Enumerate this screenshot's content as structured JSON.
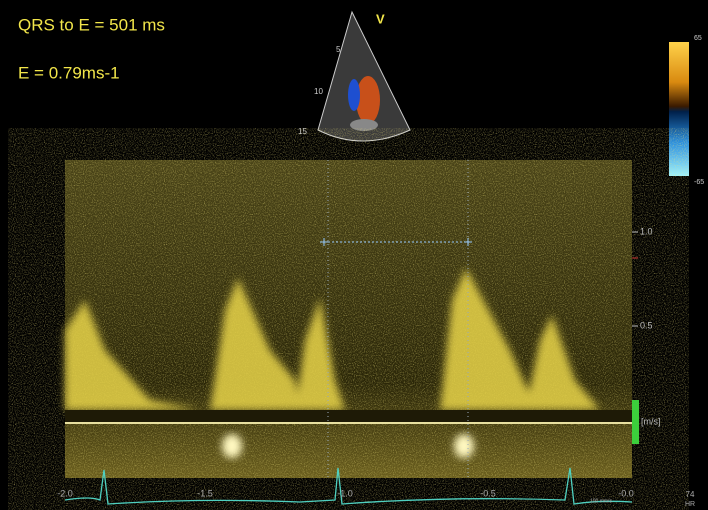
{
  "header": {
    "qrs_to_e": "QRS to E = 501 ms",
    "e_velocity": "E = 0.79ms-1"
  },
  "sector": {
    "label": "V",
    "depths": [
      "5",
      "10",
      "15"
    ]
  },
  "color_bar": {
    "top": "65",
    "bottom": "-65"
  },
  "velocity_scale": {
    "ticks": [
      "1.0",
      "0.5"
    ],
    "unit": "[m/s]"
  },
  "time_axis": {
    "ticks": [
      "-2.0",
      "-1.5",
      "-1.0",
      "-0.5",
      "-0.0"
    ],
    "speed": "100 mm/s"
  },
  "heart_rate": {
    "value": "74",
    "unit": "HR"
  }
}
